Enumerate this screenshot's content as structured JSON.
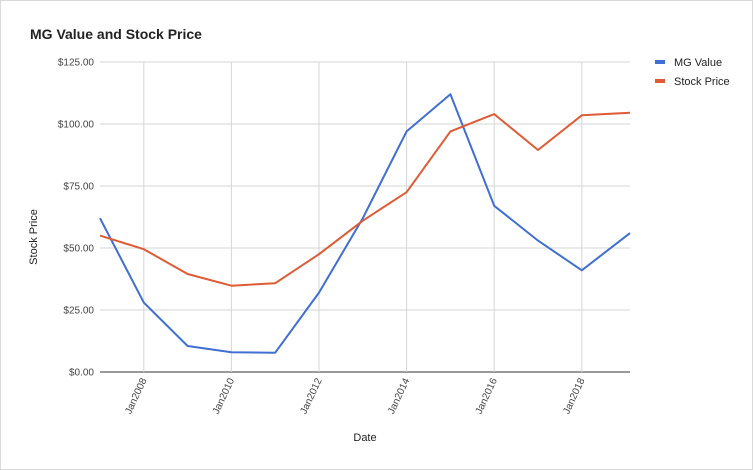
{
  "chart_data": {
    "type": "line",
    "title": "MG Value and Stock Price",
    "xlabel": "Date",
    "ylabel": "Stock Price",
    "x_ticks": [
      "Jan2008",
      "Jan2010",
      "Jan2012",
      "Jan2014",
      "Jan2016",
      "Jan2018"
    ],
    "x_tick_years": [
      2008,
      2010,
      2012,
      2014,
      2016,
      2018
    ],
    "xlim": [
      2007,
      2019.1
    ],
    "y_ticks": [
      "$0.00",
      "$25.00",
      "$50.00",
      "$75.00",
      "$100.00",
      "$125.00"
    ],
    "y_tick_values": [
      0,
      25,
      50,
      75,
      100,
      125
    ],
    "ylim": [
      0,
      125
    ],
    "grid": true,
    "legend_position": "top-right",
    "x": [
      2007,
      2008,
      2009,
      2010,
      2011,
      2012,
      2013,
      2014,
      2015,
      2016,
      2017,
      2018,
      2019.1
    ],
    "series": [
      {
        "name": "MG Value",
        "color": "#3f6fd1",
        "values": [
          62,
          28,
          10.5,
          8,
          7.8,
          32,
          62,
          97,
          112,
          67,
          53,
          41,
          56
        ]
      },
      {
        "name": "Stock Price",
        "color": "#de5b35",
        "values": [
          55,
          49.5,
          39.5,
          34.8,
          35.8,
          47.5,
          61,
          72.5,
          97,
          104,
          89.5,
          103.5,
          104.5
        ]
      }
    ]
  }
}
